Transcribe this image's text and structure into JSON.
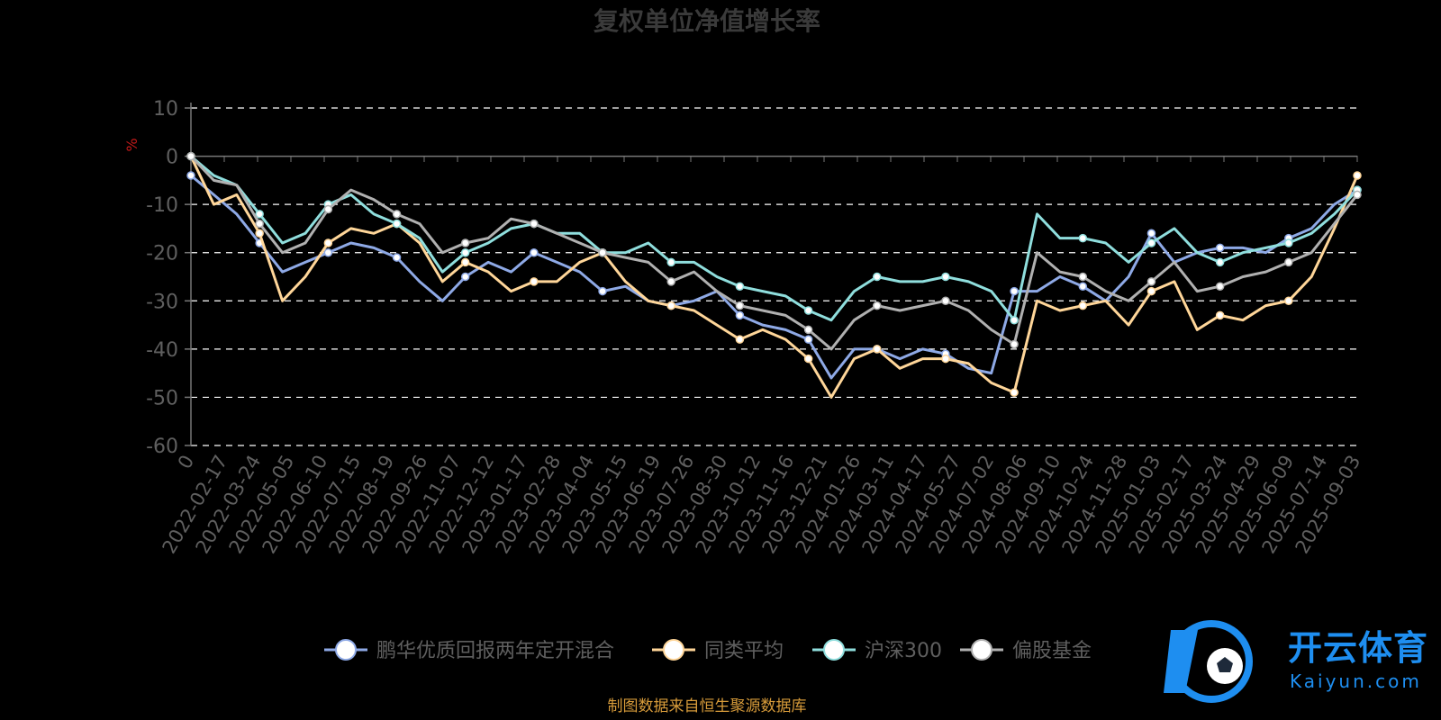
{
  "chart_data": {
    "type": "line",
    "title": "复权单位净值增长率",
    "ylabel": "%",
    "ylim": [
      -60,
      10
    ],
    "yticks": [
      10,
      0,
      -10,
      -20,
      -30,
      -40,
      -50,
      -60
    ],
    "grid": true,
    "legend_position": "bottom",
    "xtick_labels": [
      "0",
      "2022-02-17",
      "2022-03-24",
      "2022-05-05",
      "2022-06-10",
      "2022-07-15",
      "2022-08-19",
      "2022-09-26",
      "2022-11-07",
      "2022-12-12",
      "2023-01-17",
      "2023-02-28",
      "2023-04-04",
      "2023-05-15",
      "2023-06-19",
      "2023-07-26",
      "2023-08-30",
      "2023-10-12",
      "2023-11-16",
      "2023-12-21",
      "2024-01-26",
      "2024-03-11",
      "2024-04-17",
      "2024-05-27",
      "2024-07-02",
      "2024-08-06",
      "2024-09-10",
      "2024-10-24",
      "2024-11-28",
      "2025-01-03",
      "2025-02-17",
      "2025-03-24",
      "2025-04-29",
      "2025-06-09",
      "2025-07-14",
      "2025-09-03"
    ],
    "series": [
      {
        "name": "鹏华优质回报两年定开混合",
        "color": "#8ea9e6",
        "values": [
          -4,
          -8,
          -12,
          -18,
          -24,
          -22,
          -20,
          -18,
          -19,
          -21,
          -26,
          -30,
          -25,
          -22,
          -24,
          -20,
          -22,
          -24,
          -28,
          -27,
          -30,
          -31,
          -30,
          -28,
          -33,
          -35,
          -36,
          -38,
          -46,
          -40,
          -40,
          -42,
          -40,
          -41,
          -44,
          -45,
          -28,
          -28,
          -25,
          -27,
          -30,
          -25,
          -16,
          -22,
          -20,
          -19,
          -19,
          -20,
          -17,
          -15,
          -10,
          -7
        ]
      },
      {
        "name": "同类平均",
        "color": "#ffd699",
        "values": [
          0,
          -10,
          -8,
          -16,
          -30,
          -25,
          -18,
          -15,
          -16,
          -14,
          -18,
          -26,
          -22,
          -24,
          -28,
          -26,
          -26,
          -22,
          -20,
          -26,
          -30,
          -31,
          -32,
          -35,
          -38,
          -36,
          -38,
          -42,
          -50,
          -42,
          -40,
          -44,
          -42,
          -42,
          -43,
          -47,
          -49,
          -30,
          -32,
          -31,
          -30,
          -35,
          -28,
          -26,
          -36,
          -33,
          -34,
          -31,
          -30,
          -25,
          -15,
          -4
        ]
      },
      {
        "name": "沪深300",
        "color": "#8fdedd",
        "values": [
          0,
          -4,
          -6,
          -12,
          -18,
          -16,
          -10,
          -8,
          -12,
          -14,
          -17,
          -24,
          -20,
          -18,
          -15,
          -14,
          -16,
          -16,
          -20,
          -20,
          -18,
          -22,
          -22,
          -25,
          -27,
          -28,
          -29,
          -32,
          -34,
          -28,
          -25,
          -26,
          -26,
          -25,
          -26,
          -28,
          -34,
          -12,
          -17,
          -17,
          -18,
          -22,
          -18,
          -15,
          -20,
          -22,
          -20,
          -19,
          -18,
          -16,
          -12,
          -7
        ]
      },
      {
        "name": "偏股基金",
        "color": "#b0b0b0",
        "values": [
          0,
          -5,
          -6,
          -14,
          -20,
          -18,
          -11,
          -7,
          -9,
          -12,
          -14,
          -20,
          -18,
          -17,
          -13,
          -14,
          -16,
          -18,
          -20,
          -21,
          -22,
          -26,
          -24,
          -28,
          -31,
          -32,
          -33,
          -36,
          -40,
          -34,
          -31,
          -32,
          -31,
          -30,
          -32,
          -36,
          -39,
          -20,
          -24,
          -25,
          -28,
          -30,
          -26,
          -22,
          -28,
          -27,
          -25,
          -24,
          -22,
          -20,
          -14,
          -8
        ]
      }
    ]
  },
  "footer": {
    "source": "制图数据来自恒生聚源数据库"
  },
  "brand": {
    "name_cn": "开云体育",
    "name_en": "Kaiyun.com"
  }
}
